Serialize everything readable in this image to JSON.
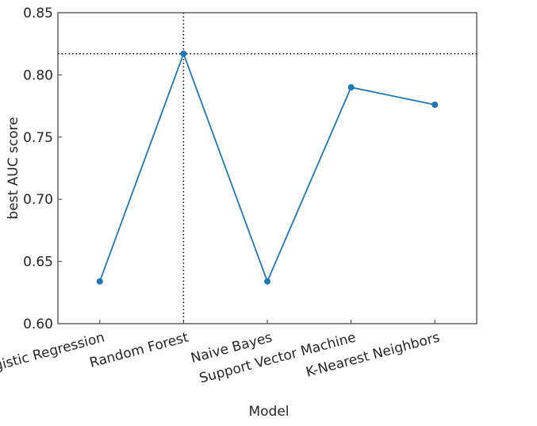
{
  "chart_data": {
    "type": "line",
    "title": "",
    "xlabel": "Model",
    "ylabel": "best AUC score",
    "categories": [
      "Logistic Regression",
      "Random Forest",
      "Naive Bayes",
      "Support Vector Machine",
      "K-Nearest Neighbors"
    ],
    "series": [
      {
        "values": [
          0.634,
          0.817,
          0.634,
          0.79,
          0.776
        ],
        "color": "#1f77b4"
      }
    ],
    "ylim": [
      0.6,
      0.85
    ],
    "yticks": [
      0.6,
      0.65,
      0.7,
      0.75,
      0.8,
      0.85
    ],
    "ytick_labels": [
      "0.60",
      "0.65",
      "0.70",
      "0.75",
      "0.80",
      "0.85"
    ],
    "grid": false,
    "reference_lines": {
      "horizontal_y": 0.817,
      "vertical_x_category": "Random Forest",
      "style": "dotted",
      "color": "#000000"
    }
  }
}
